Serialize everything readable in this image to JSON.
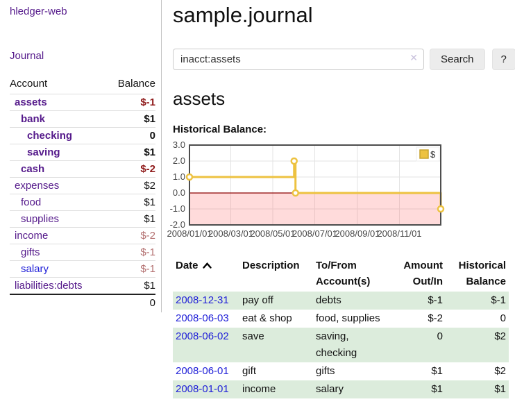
{
  "sidebar": {
    "app_link": "hledger-web",
    "journal_link": "Journal",
    "table": {
      "account_header": "Account",
      "balance_header": "Balance",
      "rows": [
        {
          "account": "assets",
          "balance": "$-1",
          "indent": 0,
          "bold": true,
          "neg": "strong"
        },
        {
          "account": "bank",
          "balance": "$1",
          "indent": 1,
          "bold": true,
          "neg": "none"
        },
        {
          "account": "checking",
          "balance": "0",
          "indent": 2,
          "bold": true,
          "neg": "none"
        },
        {
          "account": "saving",
          "balance": "$1",
          "indent": 2,
          "bold": true,
          "neg": "none"
        },
        {
          "account": "cash",
          "balance": "$-2",
          "indent": 1,
          "bold": true,
          "neg": "strong"
        },
        {
          "account": "expenses",
          "balance": "$2",
          "indent": 0,
          "bold": false,
          "neg": "none"
        },
        {
          "account": "food",
          "balance": "$1",
          "indent": 1,
          "bold": false,
          "neg": "none"
        },
        {
          "account": "supplies",
          "balance": "$1",
          "indent": 1,
          "bold": false,
          "neg": "none"
        },
        {
          "account": "income",
          "balance": "$-2",
          "indent": 0,
          "bold": false,
          "neg": "soft"
        },
        {
          "account": "gifts",
          "balance": "$-1",
          "indent": 1,
          "bold": false,
          "neg": "soft"
        },
        {
          "account": "salary",
          "balance": "$-1",
          "indent": 1,
          "bold": false,
          "neg": "soft",
          "unvisited": true
        },
        {
          "account": "liabilities:debts",
          "balance": "$1",
          "indent": 0,
          "bold": false,
          "neg": "none"
        }
      ],
      "total": "0"
    }
  },
  "main": {
    "title": "sample.journal",
    "search": {
      "value": "inacct:assets",
      "clear_icon": "✕",
      "button_label": "Search",
      "help_label": "?"
    },
    "account_heading": "assets",
    "chart_label": "Historical Balance:"
  },
  "chart_data": {
    "type": "line",
    "step": true,
    "title": "Historical Balance:",
    "xrange": [
      "2008-01-01",
      "2008-12-31"
    ],
    "ylim": [
      -2,
      3
    ],
    "y_ticks": [
      {
        "v": 3,
        "label": "3.0"
      },
      {
        "v": 2,
        "label": "2.0"
      },
      {
        "v": 1,
        "label": "1.0"
      },
      {
        "v": 0,
        "label": "0.0"
      },
      {
        "v": -1,
        "label": "-1.0"
      },
      {
        "v": -2,
        "label": "-2.0"
      }
    ],
    "x_ticks": [
      {
        "date": "2008-01-01",
        "label": "2008/01/01"
      },
      {
        "date": "2008-03-01",
        "label": "2008/03/01"
      },
      {
        "date": "2008-05-01",
        "label": "2008/05/01"
      },
      {
        "date": "2008-07-01",
        "label": "2008/07/01"
      },
      {
        "date": "2008-09-01",
        "label": "2008/09/01"
      },
      {
        "date": "2008-11-01",
        "label": "2008/11/01"
      }
    ],
    "series": [
      {
        "name": "$",
        "points": [
          [
            "2008-01-01",
            1
          ],
          [
            "2008-06-01",
            2
          ],
          [
            "2008-06-03",
            0
          ],
          [
            "2008-12-31",
            -1
          ]
        ]
      }
    ],
    "legend_position": "top-right",
    "grid": true,
    "colors": {
      "line": "#edc240",
      "marker_fill": "#ffffff",
      "negative_region": "rgba(255,110,110,0.25)",
      "zero_line": "#8b0000",
      "grid": "#e3e3e3",
      "border": "#4d4d4d",
      "tick_text": "#474747",
      "legend_square_border": "#c7a32e"
    }
  },
  "register": {
    "headers": {
      "date": "Date",
      "sort_icon": "chevron-up",
      "description": "Description",
      "account": [
        "To/From",
        "Account(s)"
      ],
      "amount": [
        "Amount",
        "Out/In"
      ],
      "balance": [
        "Historical",
        "Balance"
      ]
    },
    "rows": [
      {
        "date": "2008-12-31",
        "description": "pay off",
        "accounts": "debts",
        "amount": "$-1",
        "amount_neg": true,
        "balance": "$-1",
        "balance_neg": true
      },
      {
        "date": "2008-06-03",
        "description": "eat & shop",
        "accounts": "food, supplies",
        "amount": "$-2",
        "amount_neg": true,
        "balance": "0",
        "balance_neg": false
      },
      {
        "date": "2008-06-02",
        "description": "save",
        "accounts": "saving,\nchecking",
        "amount": "0",
        "amount_neg": false,
        "balance": "$2",
        "balance_neg": false
      },
      {
        "date": "2008-06-01",
        "description": "gift",
        "accounts": "gifts",
        "amount": "$1",
        "amount_neg": false,
        "balance": "$2",
        "balance_neg": false
      },
      {
        "date": "2008-01-01",
        "description": "income",
        "accounts": "salary",
        "amount": "$1",
        "amount_neg": false,
        "balance": "$1",
        "balance_neg": false
      }
    ]
  },
  "colors": {
    "link_purple": "#551a8b",
    "link_blue": "#2121d8",
    "negative_strong": "#8f1a1a",
    "negative_soft": "#b36f6f",
    "row_stripe_green": "#dcecdc"
  }
}
